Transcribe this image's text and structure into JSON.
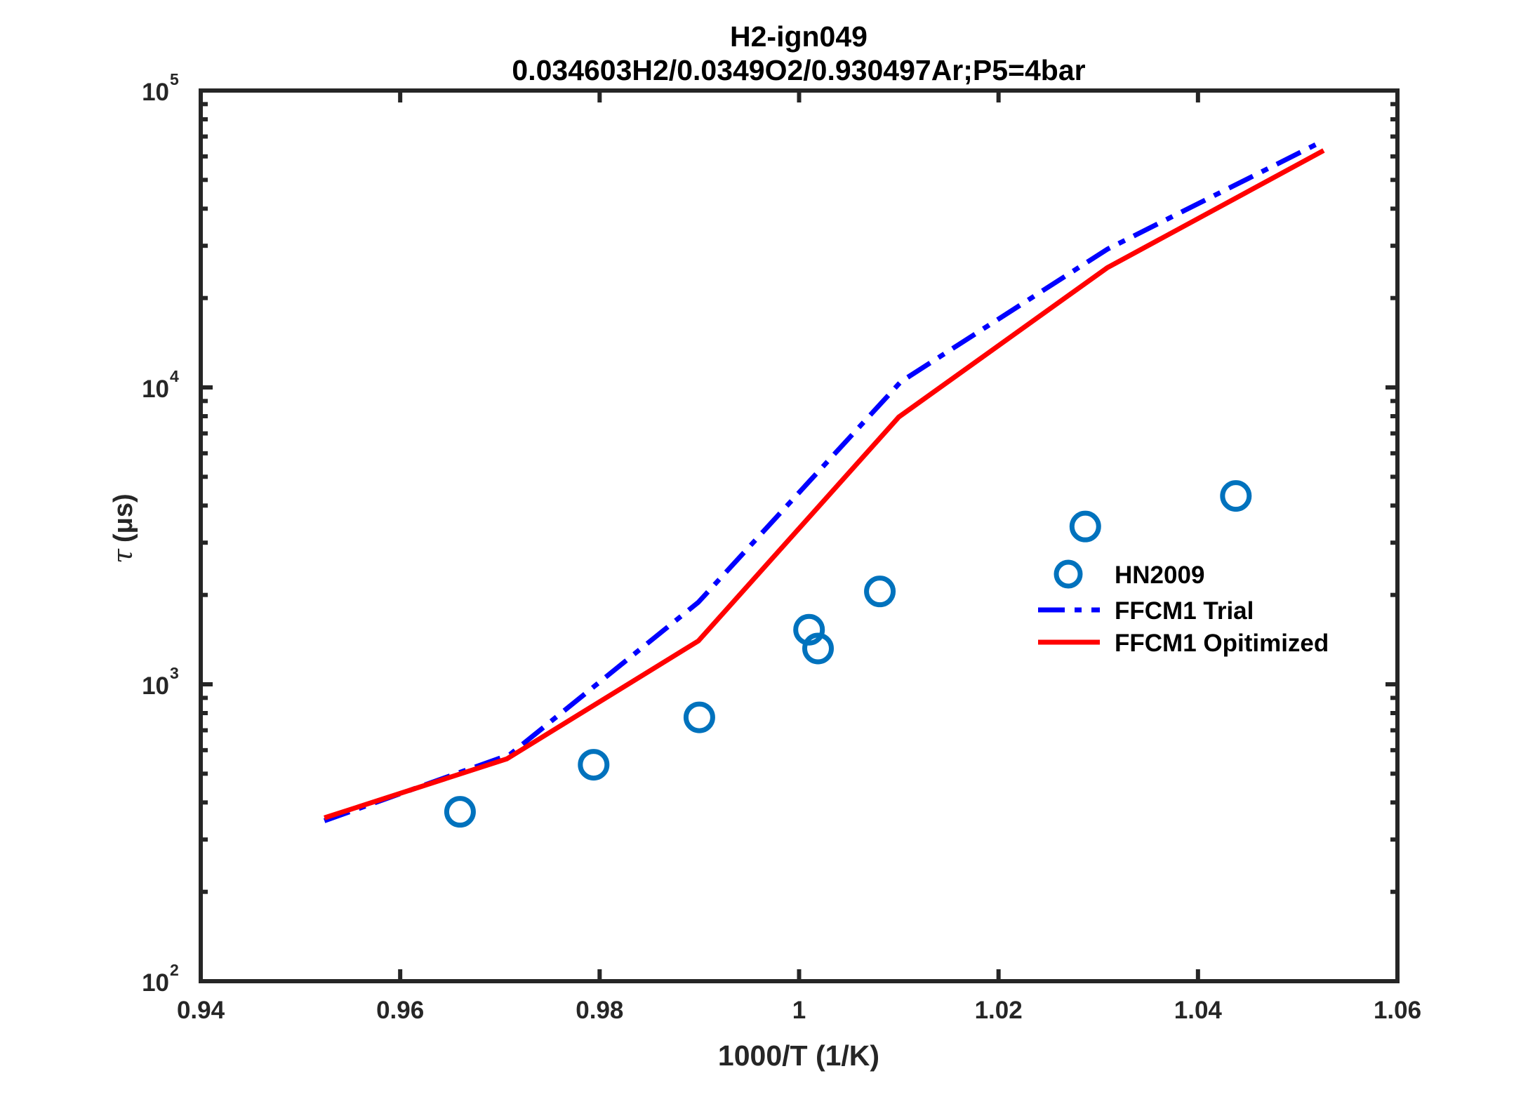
{
  "chart_data": {
    "type": "line",
    "title": "H2-ign049",
    "subtitle": "0.034603H2/0.0349O2/0.930497Ar;P5=4bar",
    "xlabel": "1000/T (1/K)",
    "ylabel_symbol": "τ",
    "ylabel": "(μs)",
    "xlim": [
      0.94,
      1.06
    ],
    "ylim": [
      100,
      100000
    ],
    "yscale": "log",
    "xticks": [
      0.94,
      0.96,
      0.98,
      1.0,
      1.02,
      1.04,
      1.06
    ],
    "xtick_labels": [
      "0.94",
      "0.96",
      "0.98",
      "1",
      "1.02",
      "1.04",
      "1.06"
    ],
    "yticks": [
      100,
      1000,
      10000,
      100000
    ],
    "ytick_labels": [
      {
        "base": "10",
        "exp": "2"
      },
      {
        "base": "10",
        "exp": "3"
      },
      {
        "base": "10",
        "exp": "4"
      },
      {
        "base": "10",
        "exp": "5"
      }
    ],
    "grid": false,
    "legend_placement": "right",
    "series": [
      {
        "name": "HN2009",
        "kind": "scatter",
        "color": "#0072bd",
        "x": [
          0.966,
          0.9794,
          0.99,
          1.001,
          1.0019,
          1.0081,
          1.0287,
          1.0438
        ],
        "y": [
          372,
          536,
          774,
          1527,
          1320,
          2055,
          3400,
          4310
        ]
      },
      {
        "name": "FFCM1 Trial",
        "kind": "dashdot",
        "color": "#0000ff",
        "x": [
          0.9524,
          0.971,
          0.9899,
          1.0102,
          1.0309,
          1.0526
        ],
        "y": [
          347,
          580,
          1890,
          10450,
          29200,
          67800
        ]
      },
      {
        "name": "FFCM1 Opitimized",
        "kind": "solid",
        "color": "#ff0000",
        "x": [
          0.9524,
          0.9707,
          0.9899,
          1.01,
          1.0309,
          1.0526
        ],
        "y": [
          355,
          561,
          1400,
          7950,
          25300,
          62800
        ]
      }
    ]
  }
}
